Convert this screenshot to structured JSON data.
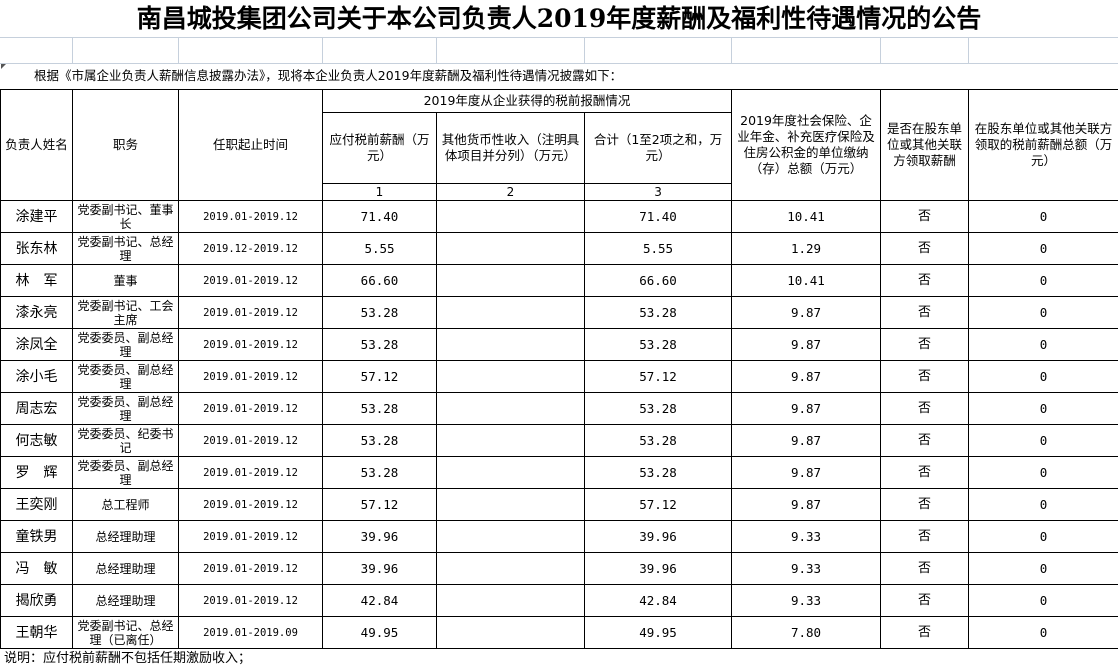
{
  "title": "南昌城投集团公司关于本公司负责人2019年度薪酬及福利性待遇情况的公告",
  "intro": "根据《市属企业负责人薪酬信息披露办法》，现将本企业负责人2019年度薪酬及福利性待遇情况披露如下：",
  "headers": {
    "name": "负责人姓名",
    "position": "职务",
    "term": "任职起止时间",
    "group": "2019年度从企业获得的税前报酬情况",
    "salary": "应付税前薪酬（万元）",
    "other": "其他货币性收入（注明具体项目并分列）（万元）",
    "total": "合计（1至2项之和，万元）",
    "insurance": "2019年度社会保险、企业年金、补充医疗保险及住房公积金的单位缴纳（存）总额（万元）",
    "shareholder": "是否在股东单位或其他关联方领取薪酬",
    "shareholder_amount": "在股东单位或其他关联方领取的税前薪酬总额（万元）",
    "col1": "1",
    "col2": "2",
    "col3": "3"
  },
  "rows": [
    {
      "name": "涂建平",
      "position": "党委副书记、董事长",
      "term": "2019.01-2019.12",
      "salary": "71.40",
      "other": "",
      "total": "71.40",
      "insurance": "10.41",
      "shareholder": "否",
      "amount": "0"
    },
    {
      "name": "张东林",
      "position": "党委副书记、总经理",
      "term": "2019.12-2019.12",
      "salary": "5.55",
      "other": "",
      "total": "5.55",
      "insurance": "1.29",
      "shareholder": "否",
      "amount": "0"
    },
    {
      "name": "林　军",
      "position": "董事",
      "term": "2019.01-2019.12",
      "salary": "66.60",
      "other": "",
      "total": "66.60",
      "insurance": "10.41",
      "shareholder": "否",
      "amount": "0"
    },
    {
      "name": "漆永亮",
      "position": "党委副书记、工会主席",
      "term": "2019.01-2019.12",
      "salary": "53.28",
      "other": "",
      "total": "53.28",
      "insurance": "9.87",
      "shareholder": "否",
      "amount": "0"
    },
    {
      "name": "涂凤全",
      "position": "党委委员、副总经理",
      "term": "2019.01-2019.12",
      "salary": "53.28",
      "other": "",
      "total": "53.28",
      "insurance": "9.87",
      "shareholder": "否",
      "amount": "0"
    },
    {
      "name": "涂小毛",
      "position": "党委委员、副总经理",
      "term": "2019.01-2019.12",
      "salary": "57.12",
      "other": "",
      "total": "57.12",
      "insurance": "9.87",
      "shareholder": "否",
      "amount": "0"
    },
    {
      "name": "周志宏",
      "position": "党委委员、副总经理",
      "term": "2019.01-2019.12",
      "salary": "53.28",
      "other": "",
      "total": "53.28",
      "insurance": "9.87",
      "shareholder": "否",
      "amount": "0"
    },
    {
      "name": "何志敏",
      "position": "党委委员、纪委书记",
      "term": "2019.01-2019.12",
      "salary": "53.28",
      "other": "",
      "total": "53.28",
      "insurance": "9.87",
      "shareholder": "否",
      "amount": "0"
    },
    {
      "name": "罗　辉",
      "position": "党委委员、副总经理",
      "term": "2019.01-2019.12",
      "salary": "53.28",
      "other": "",
      "total": "53.28",
      "insurance": "9.87",
      "shareholder": "否",
      "amount": "0"
    },
    {
      "name": "王奕刚",
      "position": "总工程师",
      "term": "2019.01-2019.12",
      "salary": "57.12",
      "other": "",
      "total": "57.12",
      "insurance": "9.87",
      "shareholder": "否",
      "amount": "0"
    },
    {
      "name": "童铁男",
      "position": "总经理助理",
      "term": "2019.01-2019.12",
      "salary": "39.96",
      "other": "",
      "total": "39.96",
      "insurance": "9.33",
      "shareholder": "否",
      "amount": "0"
    },
    {
      "name": "冯　敏",
      "position": "总经理助理",
      "term": "2019.01-2019.12",
      "salary": "39.96",
      "other": "",
      "total": "39.96",
      "insurance": "9.33",
      "shareholder": "否",
      "amount": "0"
    },
    {
      "name": "揭欣勇",
      "position": "总经理助理",
      "term": "2019.01-2019.12",
      "salary": "42.84",
      "other": "",
      "total": "42.84",
      "insurance": "9.33",
      "shareholder": "否",
      "amount": "0"
    },
    {
      "name": "王朝华",
      "position": "党委副书记、总经理（已离任）",
      "term": "2019.01-2019.09",
      "salary": "49.95",
      "other": "",
      "total": "49.95",
      "insurance": "7.80",
      "shareholder": "否",
      "amount": "0"
    }
  ],
  "footnote": "说明：应付税前薪酬不包括任期激励收入；"
}
